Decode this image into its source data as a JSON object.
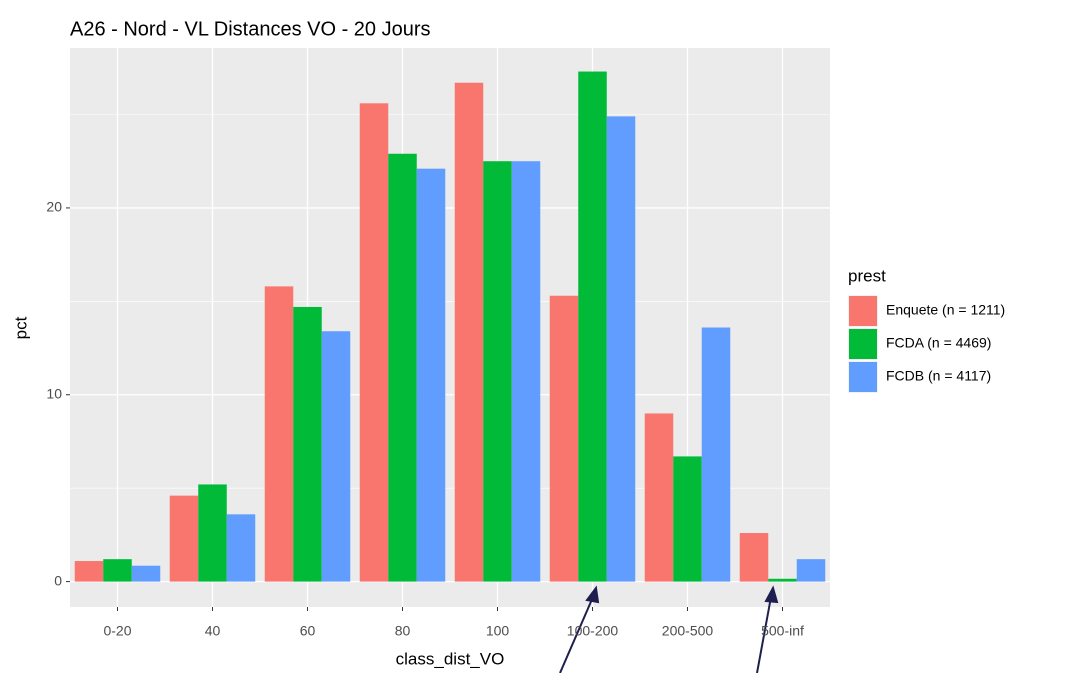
{
  "chart_data": {
    "type": "bar",
    "title": "A26 - Nord - VL Distances VO - 20 Jours",
    "x_label": "class_dist_VO",
    "y_label": "pct",
    "legend_title": "prest",
    "categories": [
      "0-20",
      "40",
      "60",
      "80",
      "100",
      "100-200",
      "200-500",
      "500-inf"
    ],
    "series": [
      {
        "name": "Enquete (n = 1211)",
        "color": "#F8766D",
        "values": [
          1.1,
          4.6,
          15.8,
          25.6,
          26.7,
          15.3,
          9.0,
          2.6
        ]
      },
      {
        "name": "FCDA (n = 4469)",
        "color": "#00BA38",
        "values": [
          1.2,
          5.2,
          14.7,
          22.9,
          22.5,
          27.3,
          6.7,
          0.15
        ]
      },
      {
        "name": "FCDB (n = 4117)",
        "color": "#619CFF",
        "values": [
          0.85,
          3.6,
          13.4,
          22.1,
          22.5,
          24.9,
          13.6,
          1.2
        ]
      }
    ],
    "ylim": [
      -1.36,
      28.56
    ],
    "yticks": [
      0,
      10,
      20
    ],
    "grid": true,
    "legend": "right"
  }
}
